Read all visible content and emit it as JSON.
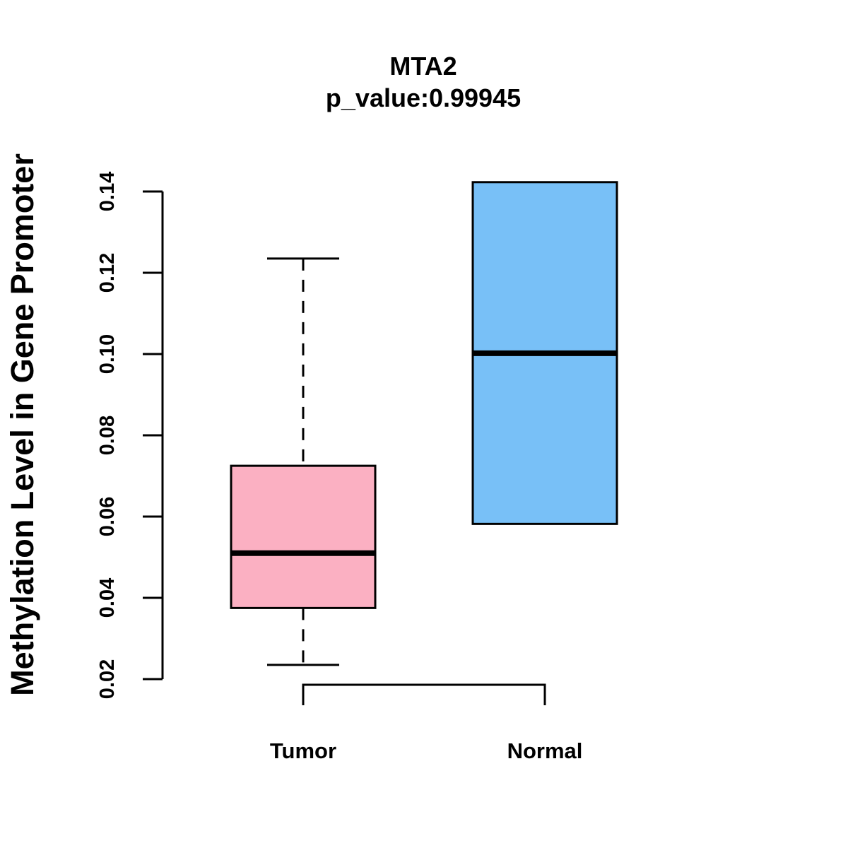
{
  "chart_data": {
    "type": "boxplot",
    "title": "MTA2",
    "subtitle": "p_value:0.99945",
    "ylabel": "Methylation Level in Gene Promoter",
    "xlabel": "",
    "ylim": [
      0.02,
      0.14
    ],
    "yticks": [
      0.02,
      0.04,
      0.06,
      0.08,
      0.1,
      0.12,
      0.14
    ],
    "ytick_labels": [
      "0.02",
      "0.04",
      "0.06",
      "0.08",
      "0.10",
      "0.12",
      "0.14"
    ],
    "categories": [
      "Tumor",
      "Normal"
    ],
    "series": [
      {
        "name": "Tumor",
        "color": "#fbb0c2",
        "whisker_low": 0.0235,
        "q1": 0.0375,
        "median": 0.051,
        "q3": 0.0725,
        "whisker_high": 0.1235
      },
      {
        "name": "Normal",
        "color": "#78c0f7",
        "whisker_low": 0.0582,
        "q1": 0.0582,
        "median": 0.1002,
        "q3": 0.1423,
        "whisker_high": 0.1423
      }
    ],
    "bracket": {
      "from": "Tumor",
      "to": "Normal"
    },
    "grid": false,
    "legend": "none"
  }
}
